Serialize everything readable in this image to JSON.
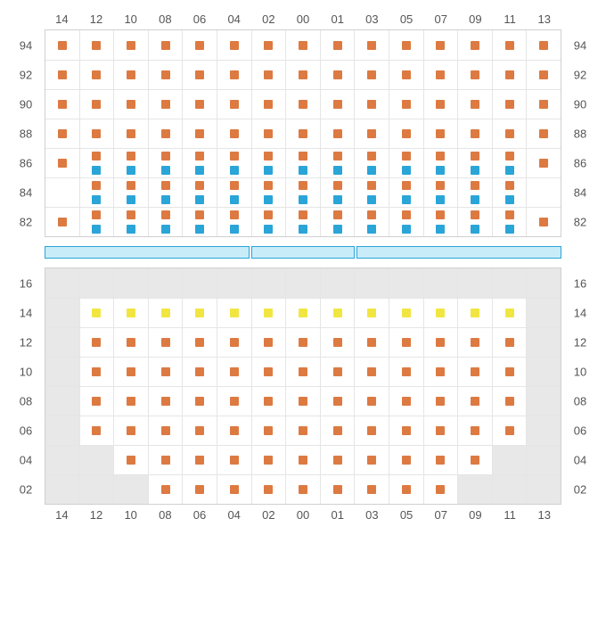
{
  "colors": {
    "available": "#dd7a42",
    "special": "#2aa5d8",
    "premium": "#f1e641",
    "empty_bg": "#e8e8e8",
    "grid": "#e5e5e5",
    "border": "#d0d0d0",
    "stage_fill": "#c9ecf9",
    "stage_border": "#2aa5d8",
    "label": "#555555"
  },
  "columns": [
    "14",
    "12",
    "10",
    "08",
    "06",
    "04",
    "02",
    "00",
    "01",
    "03",
    "05",
    "07",
    "09",
    "11",
    "13"
  ],
  "upper": {
    "rows": [
      "94",
      "92",
      "90",
      "88",
      "86",
      "84",
      "82"
    ],
    "grid": [
      [
        "a",
        "a",
        "a",
        "a",
        "a",
        "a",
        "a",
        "a",
        "a",
        "a",
        "a",
        "a",
        "a",
        "a",
        "a"
      ],
      [
        "a",
        "a",
        "a",
        "a",
        "a",
        "a",
        "a",
        "a",
        "a",
        "a",
        "a",
        "a",
        "a",
        "a",
        "a"
      ],
      [
        "a",
        "a",
        "a",
        "a",
        "a",
        "a",
        "a",
        "a",
        "a",
        "a",
        "a",
        "a",
        "a",
        "a",
        "a"
      ],
      [
        "a",
        "a",
        "a",
        "a",
        "a",
        "a",
        "a",
        "a",
        "a",
        "a",
        "a",
        "a",
        "a",
        "a",
        "a"
      ],
      [
        "a",
        "as",
        "as",
        "as",
        "as",
        "as",
        "as",
        "as",
        "as",
        "as",
        "as",
        "as",
        "as",
        "as",
        "a"
      ],
      [
        "",
        "as",
        "as",
        "as",
        "as",
        "as",
        "as",
        "as",
        "as",
        "as",
        "as",
        "as",
        "as",
        "as",
        ""
      ],
      [
        "a",
        "as",
        "as",
        "as",
        "as",
        "as",
        "as",
        "as",
        "as",
        "as",
        "as",
        "as",
        "as",
        "as",
        "a"
      ]
    ]
  },
  "stage_segments": 3,
  "lower": {
    "rows": [
      "16",
      "14",
      "12",
      "10",
      "08",
      "06",
      "04",
      "02"
    ],
    "grid": [
      [
        "e",
        "e",
        "e",
        "e",
        "e",
        "e",
        "e",
        "e",
        "e",
        "e",
        "e",
        "e",
        "e",
        "e",
        "e"
      ],
      [
        "e",
        "p",
        "p",
        "p",
        "p",
        "p",
        "p",
        "p",
        "p",
        "p",
        "p",
        "p",
        "p",
        "p",
        "e"
      ],
      [
        "e",
        "a",
        "a",
        "a",
        "a",
        "a",
        "a",
        "a",
        "a",
        "a",
        "a",
        "a",
        "a",
        "a",
        "e"
      ],
      [
        "e",
        "a",
        "a",
        "a",
        "a",
        "a",
        "a",
        "a",
        "a",
        "a",
        "a",
        "a",
        "a",
        "a",
        "e"
      ],
      [
        "e",
        "a",
        "a",
        "a",
        "a",
        "a",
        "a",
        "a",
        "a",
        "a",
        "a",
        "a",
        "a",
        "a",
        "e"
      ],
      [
        "e",
        "a",
        "a",
        "a",
        "a",
        "a",
        "a",
        "a",
        "a",
        "a",
        "a",
        "a",
        "a",
        "a",
        "e"
      ],
      [
        "e",
        "e",
        "a",
        "a",
        "a",
        "a",
        "a",
        "a",
        "a",
        "a",
        "a",
        "a",
        "a",
        "e",
        "e"
      ],
      [
        "e",
        "e",
        "e",
        "a",
        "a",
        "a",
        "a",
        "a",
        "a",
        "a",
        "a",
        "a",
        "e",
        "e",
        "e"
      ]
    ]
  }
}
